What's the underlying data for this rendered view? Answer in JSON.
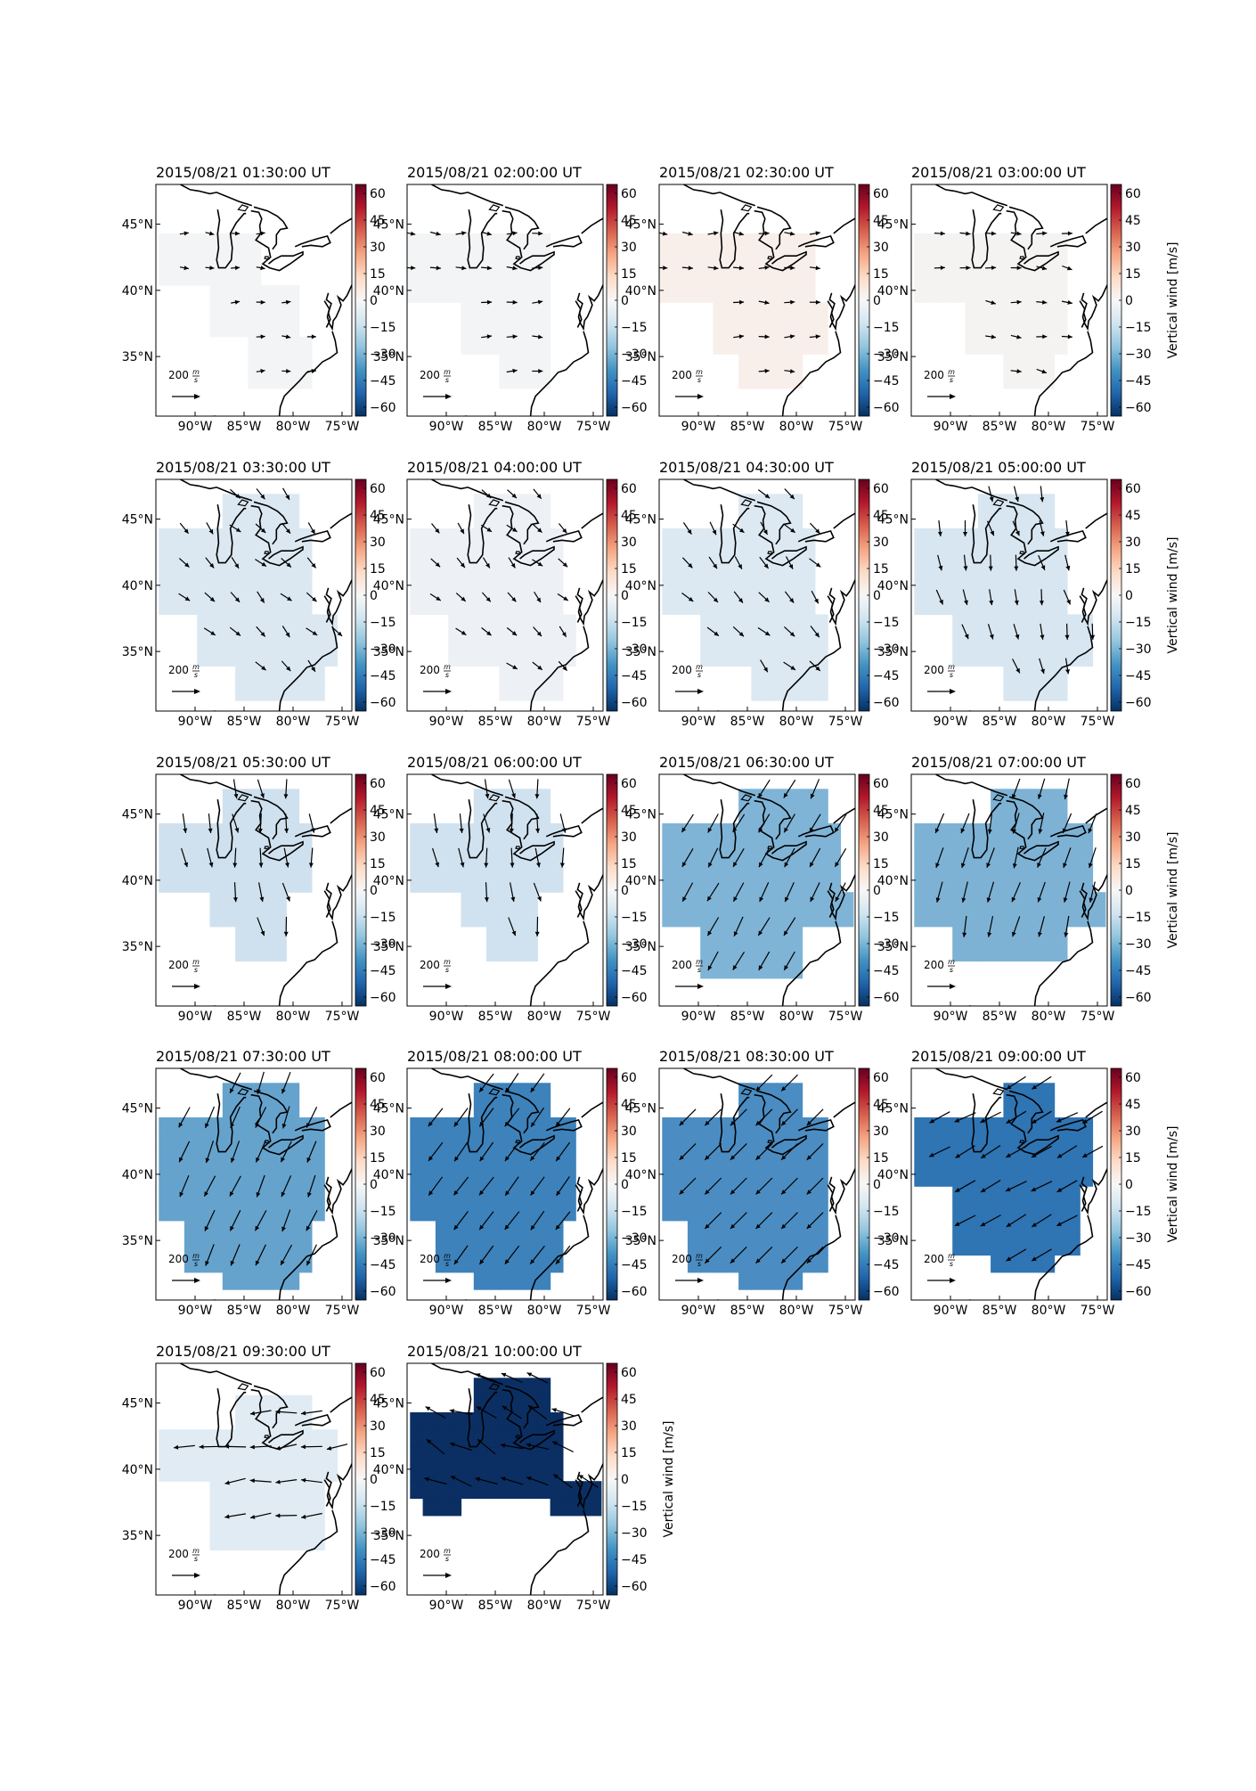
{
  "figure": {
    "panels": [
      {
        "title": "2015/08/21 01:30:00 UT",
        "fill": "#f2f4f6",
        "show_cbar_label": false
      },
      {
        "title": "2015/08/21 02:00:00 UT",
        "fill": "#f2f4f5",
        "show_cbar_label": false
      },
      {
        "title": "2015/08/21 02:30:00 UT",
        "fill": "#f8efea",
        "show_cbar_label": false
      },
      {
        "title": "2015/08/21 03:00:00 UT",
        "fill": "#f5f3f2",
        "show_cbar_label": true
      },
      {
        "title": "2015/08/21 03:30:00 UT",
        "fill": "#dbe8f2",
        "show_cbar_label": false
      },
      {
        "title": "2015/08/21 04:00:00 UT",
        "fill": "#edf1f5",
        "show_cbar_label": false
      },
      {
        "title": "2015/08/21 04:30:00 UT",
        "fill": "#dce9f2",
        "show_cbar_label": false
      },
      {
        "title": "2015/08/21 05:00:00 UT",
        "fill": "#d7e6f1",
        "show_cbar_label": true
      },
      {
        "title": "2015/08/21 05:30:00 UT",
        "fill": "#cfe1ee",
        "show_cbar_label": false
      },
      {
        "title": "2015/08/21 06:00:00 UT",
        "fill": "#d0e2ef",
        "show_cbar_label": false
      },
      {
        "title": "2015/08/21 06:30:00 UT",
        "fill": "#7fb4d6",
        "show_cbar_label": false
      },
      {
        "title": "2015/08/21 07:00:00 UT",
        "fill": "#7db2d5",
        "show_cbar_label": true
      },
      {
        "title": "2015/08/21 07:30:00 UT",
        "fill": "#65a3cd",
        "show_cbar_label": false
      },
      {
        "title": "2015/08/21 08:00:00 UT",
        "fill": "#3d82bb",
        "show_cbar_label": false
      },
      {
        "title": "2015/08/21 08:30:00 UT",
        "fill": "#4b8dc2",
        "show_cbar_label": false
      },
      {
        "title": "2015/08/21 09:00:00 UT",
        "fill": "#2f74b3",
        "show_cbar_label": true
      },
      {
        "title": "2015/08/21 09:30:00 UT",
        "fill": "#e0ebf3",
        "show_cbar_label": false
      },
      {
        "title": "2015/08/21 10:00:00 UT",
        "fill": "#0b2f63",
        "show_cbar_label": true
      }
    ],
    "lon_ticks": [
      "90°W",
      "85°W",
      "80°W",
      "75°W"
    ],
    "lat_ticks": [
      "45°N",
      "40°N",
      "35°N"
    ],
    "colorbar_ticks": [
      "60",
      "45",
      "30",
      "15",
      "0",
      "−15",
      "−30",
      "−45",
      "−60"
    ],
    "colorbar_label": "Vertical wind [m/s]",
    "scale_label": "200",
    "scale_unit_num": "m",
    "scale_unit_den": "s",
    "colorbar_stops": [
      "#67001f",
      "#b2182b",
      "#d6604d",
      "#f4a582",
      "#fddbc7",
      "#f7f7f7",
      "#d1e5f0",
      "#92c5de",
      "#4393c3",
      "#2166ac",
      "#053061"
    ]
  }
}
